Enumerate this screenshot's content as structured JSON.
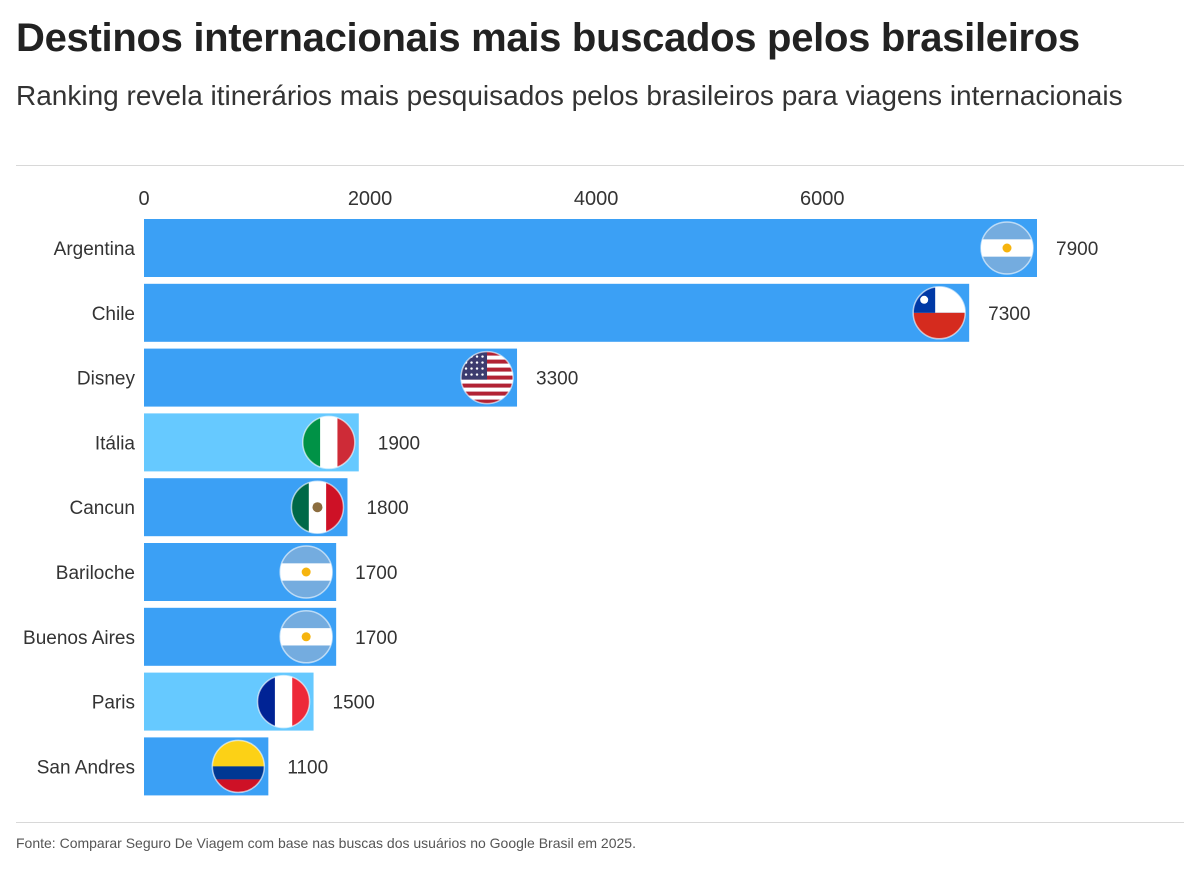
{
  "title": "Destinos internacionais mais buscados pelos brasileiros",
  "subtitle": "Ranking revela itinerários mais pesquisados pelos brasileiros para viagens internacionais",
  "source": "Fonte: Comparar Seguro De Viagem com base nas buscas dos usuários no Google Brasil em 2025.",
  "colors": {
    "bar": "#3ba0f5",
    "bar_highlight": "#66c9ff",
    "text": "#333333"
  },
  "chart_data": {
    "type": "bar",
    "orientation": "horizontal",
    "title": "Destinos internacionais mais buscados pelos brasileiros",
    "xlabel": "",
    "ylabel": "",
    "xlim": [
      0,
      7900
    ],
    "x_ticks": [
      0,
      2000,
      4000,
      6000
    ],
    "categories": [
      "Argentina",
      "Chile",
      "Disney",
      "Itália",
      "Cancun",
      "Bariloche",
      "Buenos Aires",
      "Paris",
      "San Andres"
    ],
    "values": [
      7900,
      7300,
      3300,
      1900,
      1800,
      1700,
      1700,
      1500,
      1100
    ],
    "highlighted": [
      false,
      false,
      false,
      true,
      false,
      false,
      false,
      true,
      false
    ],
    "flags": [
      "argentina-flag-icon",
      "chile-flag-icon",
      "usa-flag-icon",
      "italy-flag-icon",
      "mexico-flag-icon",
      "argentina-flag-icon",
      "argentina-flag-icon",
      "france-flag-icon",
      "colombia-flag-icon"
    ],
    "data_labels": [
      "7900",
      "7300",
      "3300",
      "1900",
      "1800",
      "1700",
      "1700",
      "1500",
      "1100"
    ],
    "grid": false,
    "legend": "none"
  }
}
